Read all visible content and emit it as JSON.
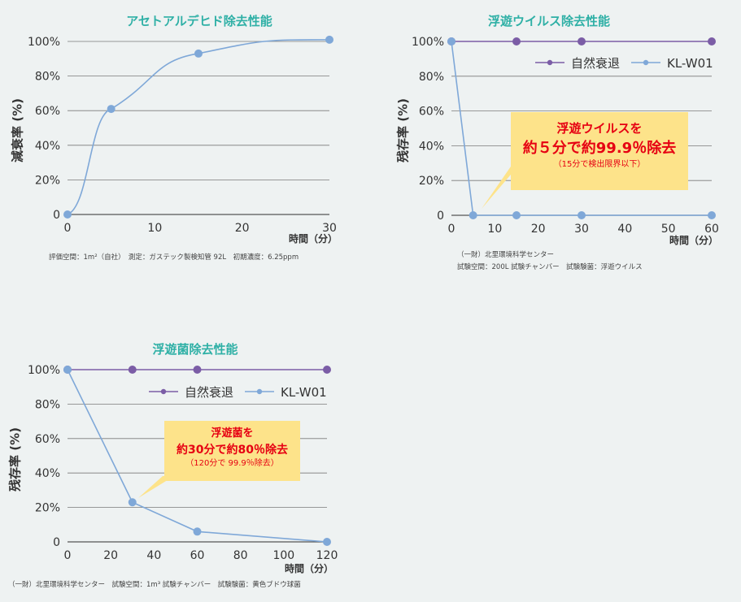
{
  "colors": {
    "title": "#2fb0a6",
    "natural": "#7b5da6",
    "klw01": "#7fa8d8",
    "callout_bg": "#fde38a",
    "callout_text": "#e60012",
    "grid": "#7a7a7a"
  },
  "chart_data": [
    {
      "id": "chart1",
      "type": "line",
      "title": "アセトアルデヒド除去性能",
      "ylabel": "減衰率 (%)",
      "xunit": "時間（分）",
      "xlim": [
        0,
        30
      ],
      "ylim": [
        0,
        100
      ],
      "xticks": [
        "0",
        "10",
        "20",
        "30"
      ],
      "yticks": [
        "0",
        "20%",
        "40%",
        "60%",
        "80%",
        "100%"
      ],
      "series": [
        {
          "x": [
            0,
            5,
            15,
            30
          ],
          "y": [
            0,
            61,
            93,
            101
          ]
        }
      ],
      "note": "評価空間：1m²（自社）　測定：ガステック製検知管 92L　初期濃度：6.25ppm"
    },
    {
      "id": "chart2",
      "type": "line",
      "title": "浮遊ウイルス除去性能",
      "ylabel": "残存率 (%)",
      "xunit": "時間（分）",
      "xlim": [
        0,
        60
      ],
      "ylim": [
        0,
        100
      ],
      "xticks": [
        "0",
        "10",
        "20",
        "30",
        "40",
        "50",
        "60"
      ],
      "yticks": [
        "0",
        "20%",
        "40%",
        "60%",
        "80%",
        "100%"
      ],
      "series": [
        {
          "name": "自然衰退",
          "x": [
            0,
            15,
            30,
            60
          ],
          "y": [
            100,
            100,
            100,
            100
          ]
        },
        {
          "name": "KL-W01",
          "x": [
            0,
            5,
            15,
            30,
            60
          ],
          "y": [
            100,
            0,
            0,
            0,
            0
          ]
        }
      ],
      "callout": {
        "line1": "浮遊ウイルスを",
        "line2": "約５分で約99.9％除去",
        "line3": "（15分で検出限界以下）"
      },
      "note_line1": "（一財）北里環境科学センター",
      "note_line2": "試験空間：200L 試験チャンバー　試験験菌：浮遊ウイルス"
    },
    {
      "id": "chart3",
      "type": "line",
      "title": "浮遊菌除去性能",
      "ylabel": "残存率 (%)",
      "xunit": "時間（分）",
      "xlim": [
        0,
        120
      ],
      "ylim": [
        0,
        100
      ],
      "xticks": [
        "0",
        "20",
        "40",
        "60",
        "80",
        "100",
        "120"
      ],
      "yticks": [
        "0",
        "20%",
        "40%",
        "60%",
        "80%",
        "100%"
      ],
      "series": [
        {
          "name": "自然衰退",
          "x": [
            0,
            30,
            60,
            120
          ],
          "y": [
            100,
            100,
            100,
            100
          ]
        },
        {
          "name": "KL-W01",
          "x": [
            0,
            30,
            60,
            120
          ],
          "y": [
            100,
            23,
            6,
            0
          ]
        }
      ],
      "callout": {
        "line1": "浮遊菌を",
        "line2": "約30分で約80％除去",
        "line3": "（120分で 99.9％除去）"
      },
      "note": "（一財）北里環境科学センター　試験空間：1m³ 試験チャンバー　試験験菌：黄色ブドウ球菌"
    }
  ]
}
